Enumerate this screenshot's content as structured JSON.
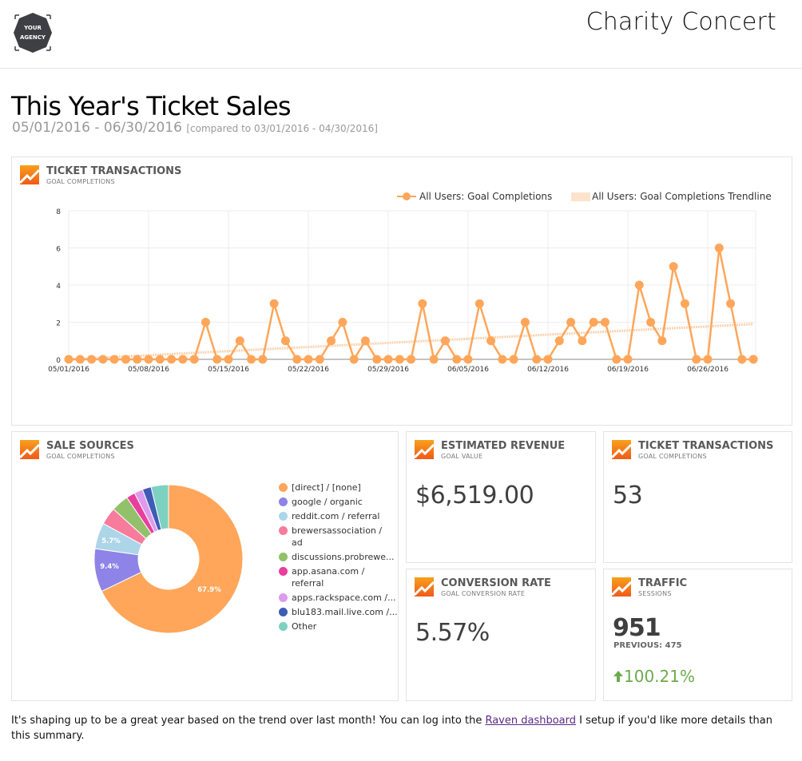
{
  "header": {
    "logo_line1": "YOUR",
    "logo_line2": "AGENCY",
    "title": "Charity Concert"
  },
  "page": {
    "title": "This Year's Ticket Sales",
    "date_range": "05/01/2016 - 06/30/2016",
    "compare_text": "[compared to 03/01/2016 - 04/30/2016]"
  },
  "ticket_chart_card": {
    "title": "TICKET TRANSACTIONS",
    "subtitle": "GOAL COMPLETIONS",
    "icon": "google-analytics-icon",
    "legend": [
      {
        "label": "All Users: Goal Completions",
        "color": "#ffa65a"
      },
      {
        "label": "All Users: Goal Completions Trendline",
        "color": "#fde3cc"
      }
    ]
  },
  "chart_data": [
    {
      "type": "line",
      "title": "TICKET TRANSACTIONS",
      "subtitle": "GOAL COMPLETIONS",
      "xlabel": "",
      "ylabel": "",
      "ylim": [
        0,
        8
      ],
      "yticks": [
        0,
        2,
        4,
        6,
        8
      ],
      "xtick_labels": [
        "05/01/2016",
        "05/08/2016",
        "05/15/2016",
        "05/22/2016",
        "05/29/2016",
        "06/05/2016",
        "06/12/2016",
        "06/19/2016",
        "06/26/2016"
      ],
      "grid": true,
      "legend_position": "top-right",
      "x": [
        "05/01",
        "05/02",
        "05/03",
        "05/04",
        "05/05",
        "05/06",
        "05/07",
        "05/08",
        "05/09",
        "05/10",
        "05/11",
        "05/12",
        "05/13",
        "05/14",
        "05/15",
        "05/16",
        "05/17",
        "05/18",
        "05/19",
        "05/20",
        "05/21",
        "05/22",
        "05/23",
        "05/24",
        "05/25",
        "05/26",
        "05/27",
        "05/28",
        "05/29",
        "05/30",
        "05/31",
        "06/01",
        "06/02",
        "06/03",
        "06/04",
        "06/05",
        "06/06",
        "06/07",
        "06/08",
        "06/09",
        "06/10",
        "06/11",
        "06/12",
        "06/13",
        "06/14",
        "06/15",
        "06/16",
        "06/17",
        "06/18",
        "06/19",
        "06/20",
        "06/21",
        "06/22",
        "06/23",
        "06/24",
        "06/25",
        "06/26",
        "06/27",
        "06/28",
        "06/29",
        "06/30"
      ],
      "series": [
        {
          "name": "All Users: Goal Completions",
          "color": "#ffa65a",
          "values": [
            0,
            0,
            0,
            0,
            0,
            0,
            0,
            0,
            0,
            0,
            0,
            0,
            2,
            0,
            0,
            1,
            0,
            0,
            3,
            1,
            0,
            0,
            0,
            1,
            2,
            0,
            1,
            0,
            0,
            0,
            0,
            3,
            0,
            1,
            0,
            0,
            3,
            1,
            0,
            0,
            2,
            0,
            0,
            1,
            2,
            1,
            2,
            2,
            0,
            0,
            4,
            2,
            1,
            5,
            3,
            0,
            0,
            6,
            3,
            0,
            0
          ]
        },
        {
          "name": "All Users: Goal Completions Trendline",
          "color": "#fde3cc",
          "values_start_end": [
            -0.1,
            1.9
          ]
        }
      ]
    },
    {
      "type": "pie",
      "title": "SALE SOURCES",
      "subtitle": "GOAL COMPLETIONS",
      "donut": true,
      "categories": [
        "[direct] / [none]",
        "google / organic",
        "reddit.com / referral",
        "brewersassociation / ad",
        "discussions.probrewe...",
        "app.asana.com / referral",
        "apps.rackspace.com /...",
        "blu183.mail.live.com /...",
        "Other"
      ],
      "values": [
        67.9,
        9.4,
        5.7,
        3.8,
        3.8,
        1.9,
        1.9,
        1.9,
        3.8
      ],
      "visible_labels": [
        "67.9%",
        "9.4%",
        "5.7%"
      ],
      "colors": [
        "#ffa65a",
        "#8e83e6",
        "#acd5e8",
        "#f77b9b",
        "#93c06a",
        "#e83e9d",
        "#dc9bec",
        "#3f5bb5",
        "#7dd1c1"
      ],
      "legend_position": "right"
    }
  ],
  "sale_sources_card": {
    "title": "SALE SOURCES",
    "subtitle": "GOAL COMPLETIONS",
    "slice_labels": [
      "67.9%",
      "9.4%",
      "5.7%"
    ],
    "legend": [
      {
        "label": "[direct] / [none]",
        "color": "#ffa65a"
      },
      {
        "label": "google / organic",
        "color": "#8e83e6"
      },
      {
        "label": "reddit.com / referral",
        "color": "#acd5e8"
      },
      {
        "label": "brewersassociation / ad",
        "color": "#f77b9b"
      },
      {
        "label": "discussions.probrewe...",
        "color": "#93c06a"
      },
      {
        "label": "app.asana.com / referral",
        "color": "#e83e9d"
      },
      {
        "label": "apps.rackspace.com /...",
        "color": "#dc9bec"
      },
      {
        "label": "blu183.mail.live.com /...",
        "color": "#3f5bb5"
      },
      {
        "label": "Other",
        "color": "#7dd1c1"
      }
    ]
  },
  "metrics": {
    "revenue": {
      "title": "ESTIMATED REVENUE",
      "subtitle": "GOAL VALUE",
      "value": "$6,519.00"
    },
    "transactions": {
      "title": "TICKET TRANSACTIONS",
      "subtitle": "GOAL COMPLETIONS",
      "value": "53"
    },
    "conversion": {
      "title": "CONVERSION RATE",
      "subtitle": "GOAL CONVERSION RATE",
      "value": "5.57%"
    },
    "traffic": {
      "title": "TRAFFIC",
      "subtitle": "SESSIONS",
      "value": "951",
      "previous": "PREVIOUS: 475",
      "change": "100.21%",
      "change_icon": "arrow-up-icon",
      "change_color": "#6cab4c"
    }
  },
  "footer": {
    "text_before": "It's shaping up to be a great year based on the trend over last month! You can log into the ",
    "link_text": "Raven dashboard",
    "text_after": " I setup if you'd like more details than this summary."
  },
  "colors": {
    "accent_orange": "#ffa65a",
    "trend": "#fde3cc",
    "positive": "#6cab4c",
    "link": "#5b2a86"
  }
}
